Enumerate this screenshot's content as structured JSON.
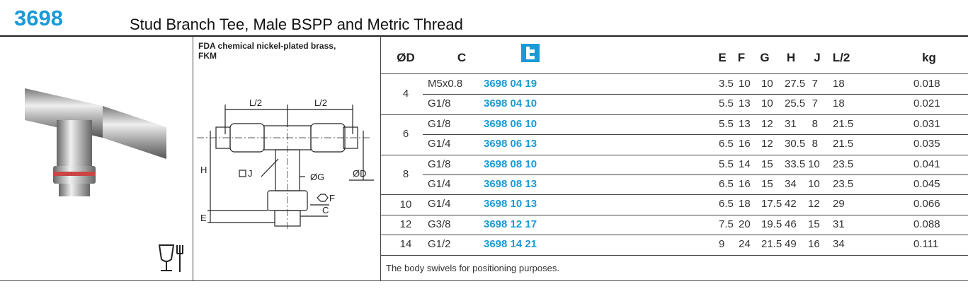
{
  "header": {
    "code": "3698",
    "title": "Stud Branch Tee, Male BSPP and Metric Thread"
  },
  "material": "FDA chemical nickel-plated brass, FKM",
  "diagram": {
    "l2_left": "L/2",
    "l2_right": "L/2",
    "h": "H",
    "j": "J",
    "g": "ØG",
    "d": "ØD",
    "f": "F",
    "e": "E",
    "c": "C"
  },
  "table": {
    "columns": [
      "ØD",
      "C",
      "E",
      "F",
      "G",
      "H",
      "J",
      "L/2",
      "kg"
    ],
    "groups": [
      {
        "d": "4",
        "rows": [
          [
            "M5x0.8",
            "3698 04 19",
            "3.5",
            "10",
            "10",
            "27.5",
            "7",
            "18",
            "0.018"
          ],
          [
            "G1/8",
            "3698 04 10",
            "5.5",
            "13",
            "10",
            "25.5",
            "7",
            "18",
            "0.021"
          ]
        ]
      },
      {
        "d": "6",
        "rows": [
          [
            "G1/8",
            "3698 06 10",
            "5.5",
            "13",
            "12",
            "31",
            "8",
            "21.5",
            "0.031"
          ],
          [
            "G1/4",
            "3698 06 13",
            "6.5",
            "16",
            "12",
            "30.5",
            "8",
            "21.5",
            "0.035"
          ]
        ]
      },
      {
        "d": "8",
        "rows": [
          [
            "G1/8",
            "3698 08 10",
            "5.5",
            "14",
            "15",
            "33.5",
            "10",
            "23.5",
            "0.041"
          ],
          [
            "G1/4",
            "3698 08 13",
            "6.5",
            "16",
            "15",
            "34",
            "10",
            "23.5",
            "0.045"
          ]
        ]
      },
      {
        "d": "10",
        "rows": [
          [
            "G1/4",
            "3698 10 13",
            "6.5",
            "18",
            "17.5",
            "42",
            "12",
            "29",
            "0.066"
          ]
        ]
      },
      {
        "d": "12",
        "rows": [
          [
            "G3/8",
            "3698 12 17",
            "7.5",
            "20",
            "19.5",
            "46",
            "15",
            "31",
            "0.088"
          ]
        ]
      },
      {
        "d": "14",
        "rows": [
          [
            "G1/2",
            "3698 14 21",
            "9",
            "24",
            "21.5",
            "49",
            "16",
            "34",
            "0.111"
          ]
        ]
      }
    ]
  },
  "footnote": "The body swivels for positioning purposes."
}
